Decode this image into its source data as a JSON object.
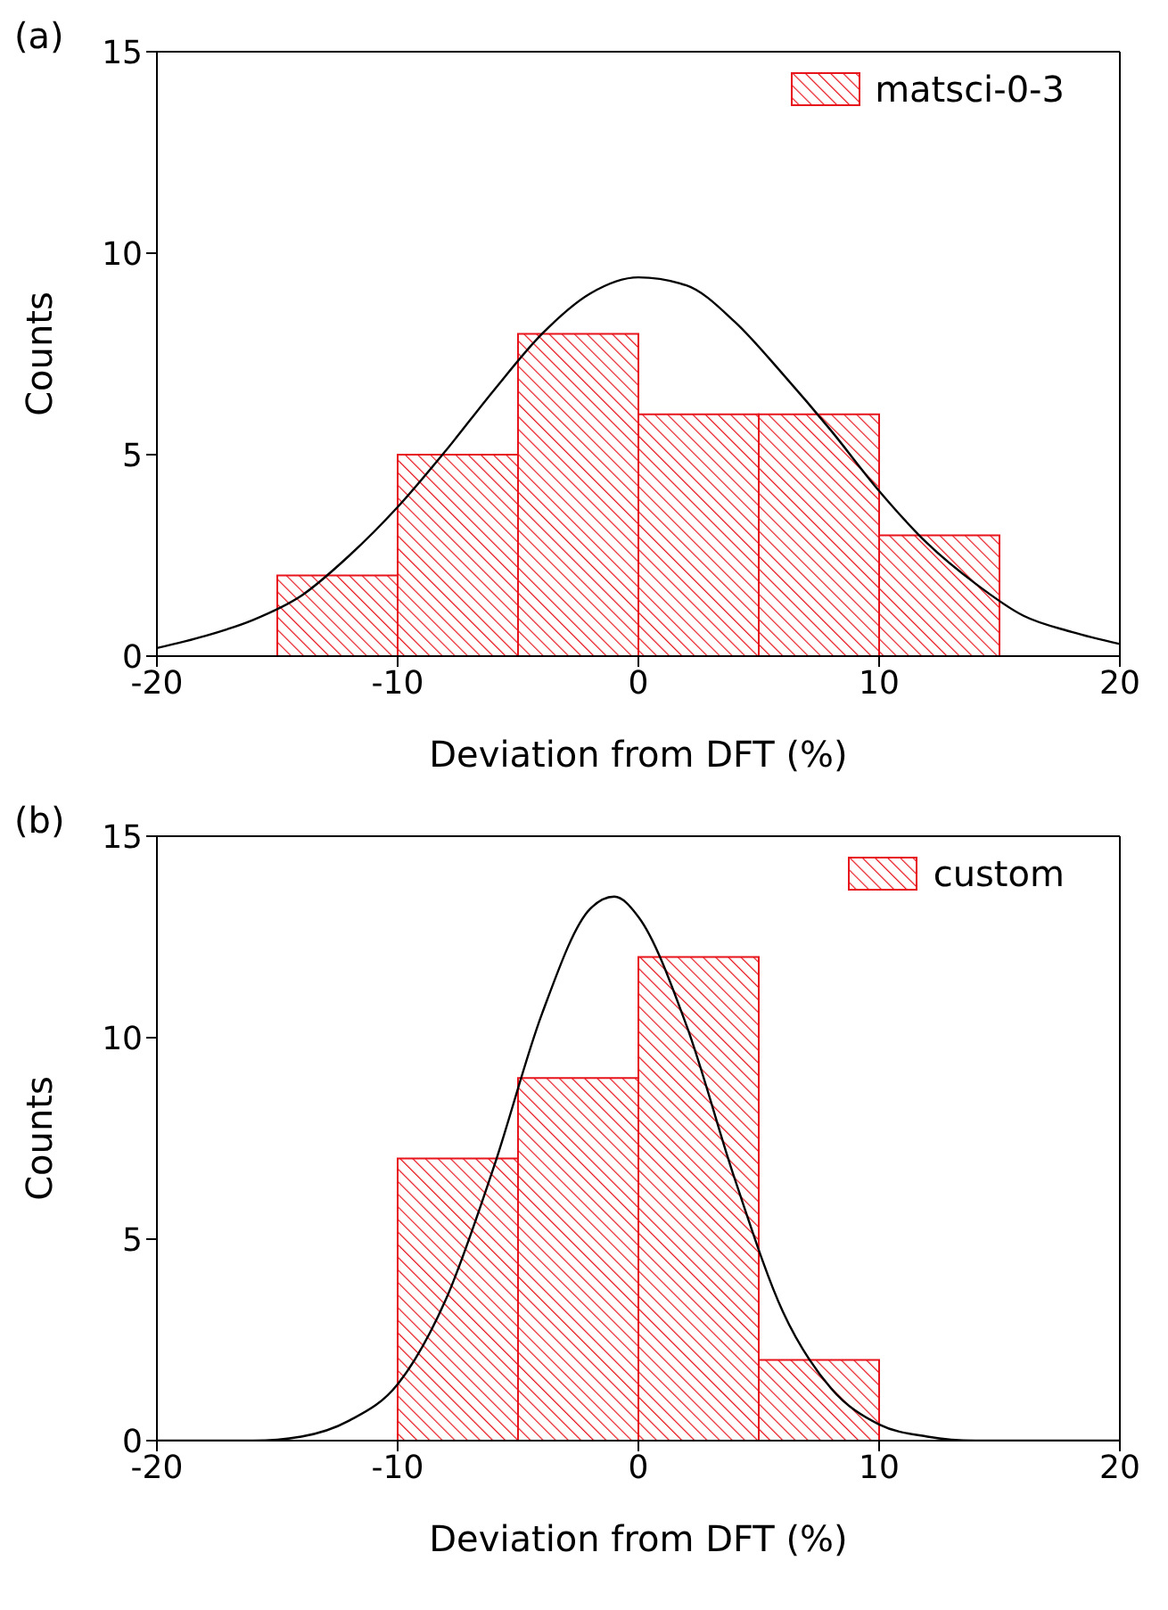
{
  "chart_data": [
    {
      "type": "histogram",
      "xlabel": "Deviation from DFT (%)",
      "ylabel": "Counts",
      "annotations": [
        "(a)"
      ],
      "bins": [
        -15,
        -10,
        -5,
        0,
        5,
        10,
        15
      ],
      "xlim": [
        -20,
        20
      ],
      "xticks": [
        -20,
        -10,
        0,
        10,
        20
      ],
      "ylim": [
        0,
        15
      ],
      "yticks": [
        0,
        5,
        10,
        15
      ],
      "legend": "top right",
      "series": [
        {
          "name": "matsci-0-3",
          "color": "#e8141c",
          "values": [
            2,
            5,
            8,
            6,
            6,
            3
          ]
        },
        {
          "type": "line",
          "color": "#000000",
          "x": [
            -20,
            -18,
            -16,
            -14,
            -12,
            -10,
            -8,
            -6,
            -4,
            -2,
            0,
            2,
            4,
            6,
            8,
            10,
            12,
            14,
            16,
            18,
            20
          ],
          "values": [
            0.2,
            0.5,
            0.9,
            1.5,
            2.5,
            3.7,
            5.1,
            6.6,
            8,
            9,
            9.4,
            9.2,
            8.3,
            7,
            5.6,
            4.1,
            2.8,
            1.8,
            1,
            0.6,
            0.3
          ]
        }
      ]
    },
    {
      "type": "histogram",
      "xlabel": "Deviation from DFT (%)",
      "ylabel": "Counts",
      "annotations": [
        "(b)"
      ],
      "bins": [
        -10,
        -5,
        0,
        5,
        10
      ],
      "xlim": [
        -20,
        20
      ],
      "xticks": [
        -20,
        -10,
        0,
        10,
        20
      ],
      "ylim": [
        0,
        15
      ],
      "yticks": [
        0,
        5,
        10,
        15
      ],
      "legend": "top right",
      "series": [
        {
          "name": "custom",
          "color": "#e8141c",
          "values": [
            7,
            9,
            12,
            2
          ]
        },
        {
          "type": "line",
          "color": "#000000",
          "x": [
            -20,
            -16,
            -14,
            -12,
            -10,
            -8,
            -6,
            -4,
            -2,
            -1,
            0,
            2,
            4,
            6,
            8,
            10,
            12,
            14,
            20
          ],
          "values": [
            0,
            0,
            0.1,
            0.5,
            1.4,
            3.5,
            6.8,
            10.6,
            13.2,
            13.5,
            13,
            10.3,
            6.5,
            3.2,
            1.3,
            0.4,
            0.1,
            0,
            0
          ]
        }
      ]
    }
  ]
}
